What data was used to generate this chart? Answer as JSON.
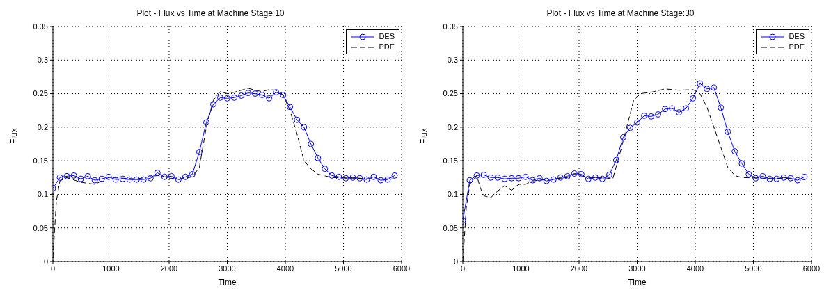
{
  "chart_data": [
    {
      "type": "line",
      "title": "Plot - Flux vs Time at Machine Stage:10",
      "xlabel": "Time",
      "ylabel": "Flux",
      "xlim": [
        0,
        6000
      ],
      "xticks": [
        0,
        1000,
        2000,
        3000,
        4000,
        5000,
        6000
      ],
      "ylim": [
        0,
        0.35
      ],
      "yticks": [
        0,
        0.05,
        0.1,
        0.15,
        0.2,
        0.25,
        0.3,
        0.35
      ],
      "grid": true,
      "legend": "top right",
      "series": [
        {
          "name": "DES",
          "color": "#0000ff",
          "marker": "circle",
          "line_style": "solid",
          "x": [
            0,
            120,
            240,
            360,
            480,
            600,
            720,
            840,
            960,
            1080,
            1200,
            1320,
            1440,
            1560,
            1680,
            1800,
            1920,
            2040,
            2160,
            2280,
            2400,
            2520,
            2640,
            2760,
            2880,
            3000,
            3120,
            3240,
            3360,
            3480,
            3600,
            3720,
            3840,
            3960,
            4080,
            4200,
            4320,
            4440,
            4560,
            4680,
            4800,
            4920,
            5040,
            5160,
            5280,
            5400,
            5520,
            5640,
            5760,
            5880
          ],
          "values": [
            0.109,
            0.125,
            0.127,
            0.128,
            0.123,
            0.127,
            0.121,
            0.123,
            0.126,
            0.122,
            0.123,
            0.122,
            0.122,
            0.122,
            0.124,
            0.132,
            0.126,
            0.127,
            0.122,
            0.126,
            0.13,
            0.163,
            0.207,
            0.234,
            0.244,
            0.243,
            0.244,
            0.247,
            0.251,
            0.25,
            0.248,
            0.243,
            0.252,
            0.248,
            0.23,
            0.211,
            0.2,
            0.175,
            0.154,
            0.138,
            0.128,
            0.126,
            0.124,
            0.125,
            0.124,
            0.122,
            0.126,
            0.121,
            0.122,
            0.128
          ]
        },
        {
          "name": "PDE",
          "color": "#000000",
          "marker": "none",
          "line_style": "dashed",
          "x": [
            0,
            60,
            120,
            240,
            480,
            720,
            960,
            1440,
            1800,
            2160,
            2400,
            2520,
            2640,
            2760,
            2880,
            3000,
            3120,
            3240,
            3360,
            3480,
            3600,
            3720,
            3840,
            3960,
            4080,
            4200,
            4320,
            4440,
            4560,
            4800,
            5160,
            5520,
            5880
          ],
          "values": [
            0.005,
            0.09,
            0.12,
            0.125,
            0.118,
            0.115,
            0.125,
            0.123,
            0.128,
            0.122,
            0.126,
            0.14,
            0.2,
            0.24,
            0.253,
            0.25,
            0.252,
            0.255,
            0.258,
            0.255,
            0.253,
            0.256,
            0.255,
            0.248,
            0.225,
            0.19,
            0.15,
            0.138,
            0.13,
            0.125,
            0.124,
            0.123,
            0.123
          ]
        }
      ]
    },
    {
      "type": "line",
      "title": "Plot - Flux vs Time at Machine Stage:30",
      "xlabel": "Time",
      "ylabel": "Flux",
      "xlim": [
        0,
        6000
      ],
      "xticks": [
        0,
        1000,
        2000,
        3000,
        4000,
        5000,
        6000
      ],
      "ylim": [
        0,
        0.35
      ],
      "yticks": [
        0,
        0.05,
        0.1,
        0.15,
        0.2,
        0.25,
        0.3,
        0.35
      ],
      "grid": true,
      "legend": "top right",
      "series": [
        {
          "name": "DES",
          "color": "#0000ff",
          "marker": "circle",
          "line_style": "solid",
          "x": [
            0,
            120,
            240,
            360,
            480,
            600,
            720,
            840,
            960,
            1080,
            1200,
            1320,
            1440,
            1560,
            1680,
            1800,
            1920,
            2040,
            2160,
            2280,
            2400,
            2520,
            2640,
            2760,
            2880,
            3000,
            3120,
            3240,
            3360,
            3480,
            3600,
            3720,
            3840,
            3960,
            4080,
            4200,
            4320,
            4440,
            4560,
            4680,
            4800,
            4920,
            5040,
            5160,
            5280,
            5400,
            5520,
            5640,
            5760,
            5880
          ],
          "values": [
            0.061,
            0.121,
            0.128,
            0.129,
            0.125,
            0.125,
            0.123,
            0.124,
            0.124,
            0.126,
            0.121,
            0.124,
            0.12,
            0.122,
            0.125,
            0.127,
            0.131,
            0.13,
            0.123,
            0.125,
            0.123,
            0.129,
            0.151,
            0.185,
            0.199,
            0.207,
            0.217,
            0.216,
            0.219,
            0.227,
            0.228,
            0.222,
            0.228,
            0.243,
            0.265,
            0.257,
            0.259,
            0.229,
            0.193,
            0.164,
            0.146,
            0.13,
            0.124,
            0.127,
            0.123,
            0.123,
            0.125,
            0.124,
            0.121,
            0.126
          ]
        },
        {
          "name": "PDE",
          "color": "#000000",
          "marker": "none",
          "line_style": "dashed",
          "x": [
            0,
            60,
            120,
            240,
            300,
            360,
            480,
            600,
            720,
            840,
            960,
            1080,
            1200,
            1440,
            1800,
            1920,
            2160,
            2400,
            2580,
            2700,
            2820,
            2940,
            3060,
            3240,
            3480,
            3720,
            3960,
            4080,
            4200,
            4320,
            4440,
            4560,
            4680,
            4800,
            5160,
            5520,
            5880
          ],
          "values": [
            0,
            0.08,
            0.115,
            0.128,
            0.11,
            0.098,
            0.095,
            0.105,
            0.113,
            0.106,
            0.115,
            0.115,
            0.12,
            0.122,
            0.125,
            0.13,
            0.125,
            0.125,
            0.123,
            0.16,
            0.2,
            0.24,
            0.25,
            0.252,
            0.257,
            0.255,
            0.256,
            0.25,
            0.23,
            0.2,
            0.17,
            0.14,
            0.128,
            0.125,
            0.124,
            0.124,
            0.122
          ]
        }
      ]
    }
  ]
}
